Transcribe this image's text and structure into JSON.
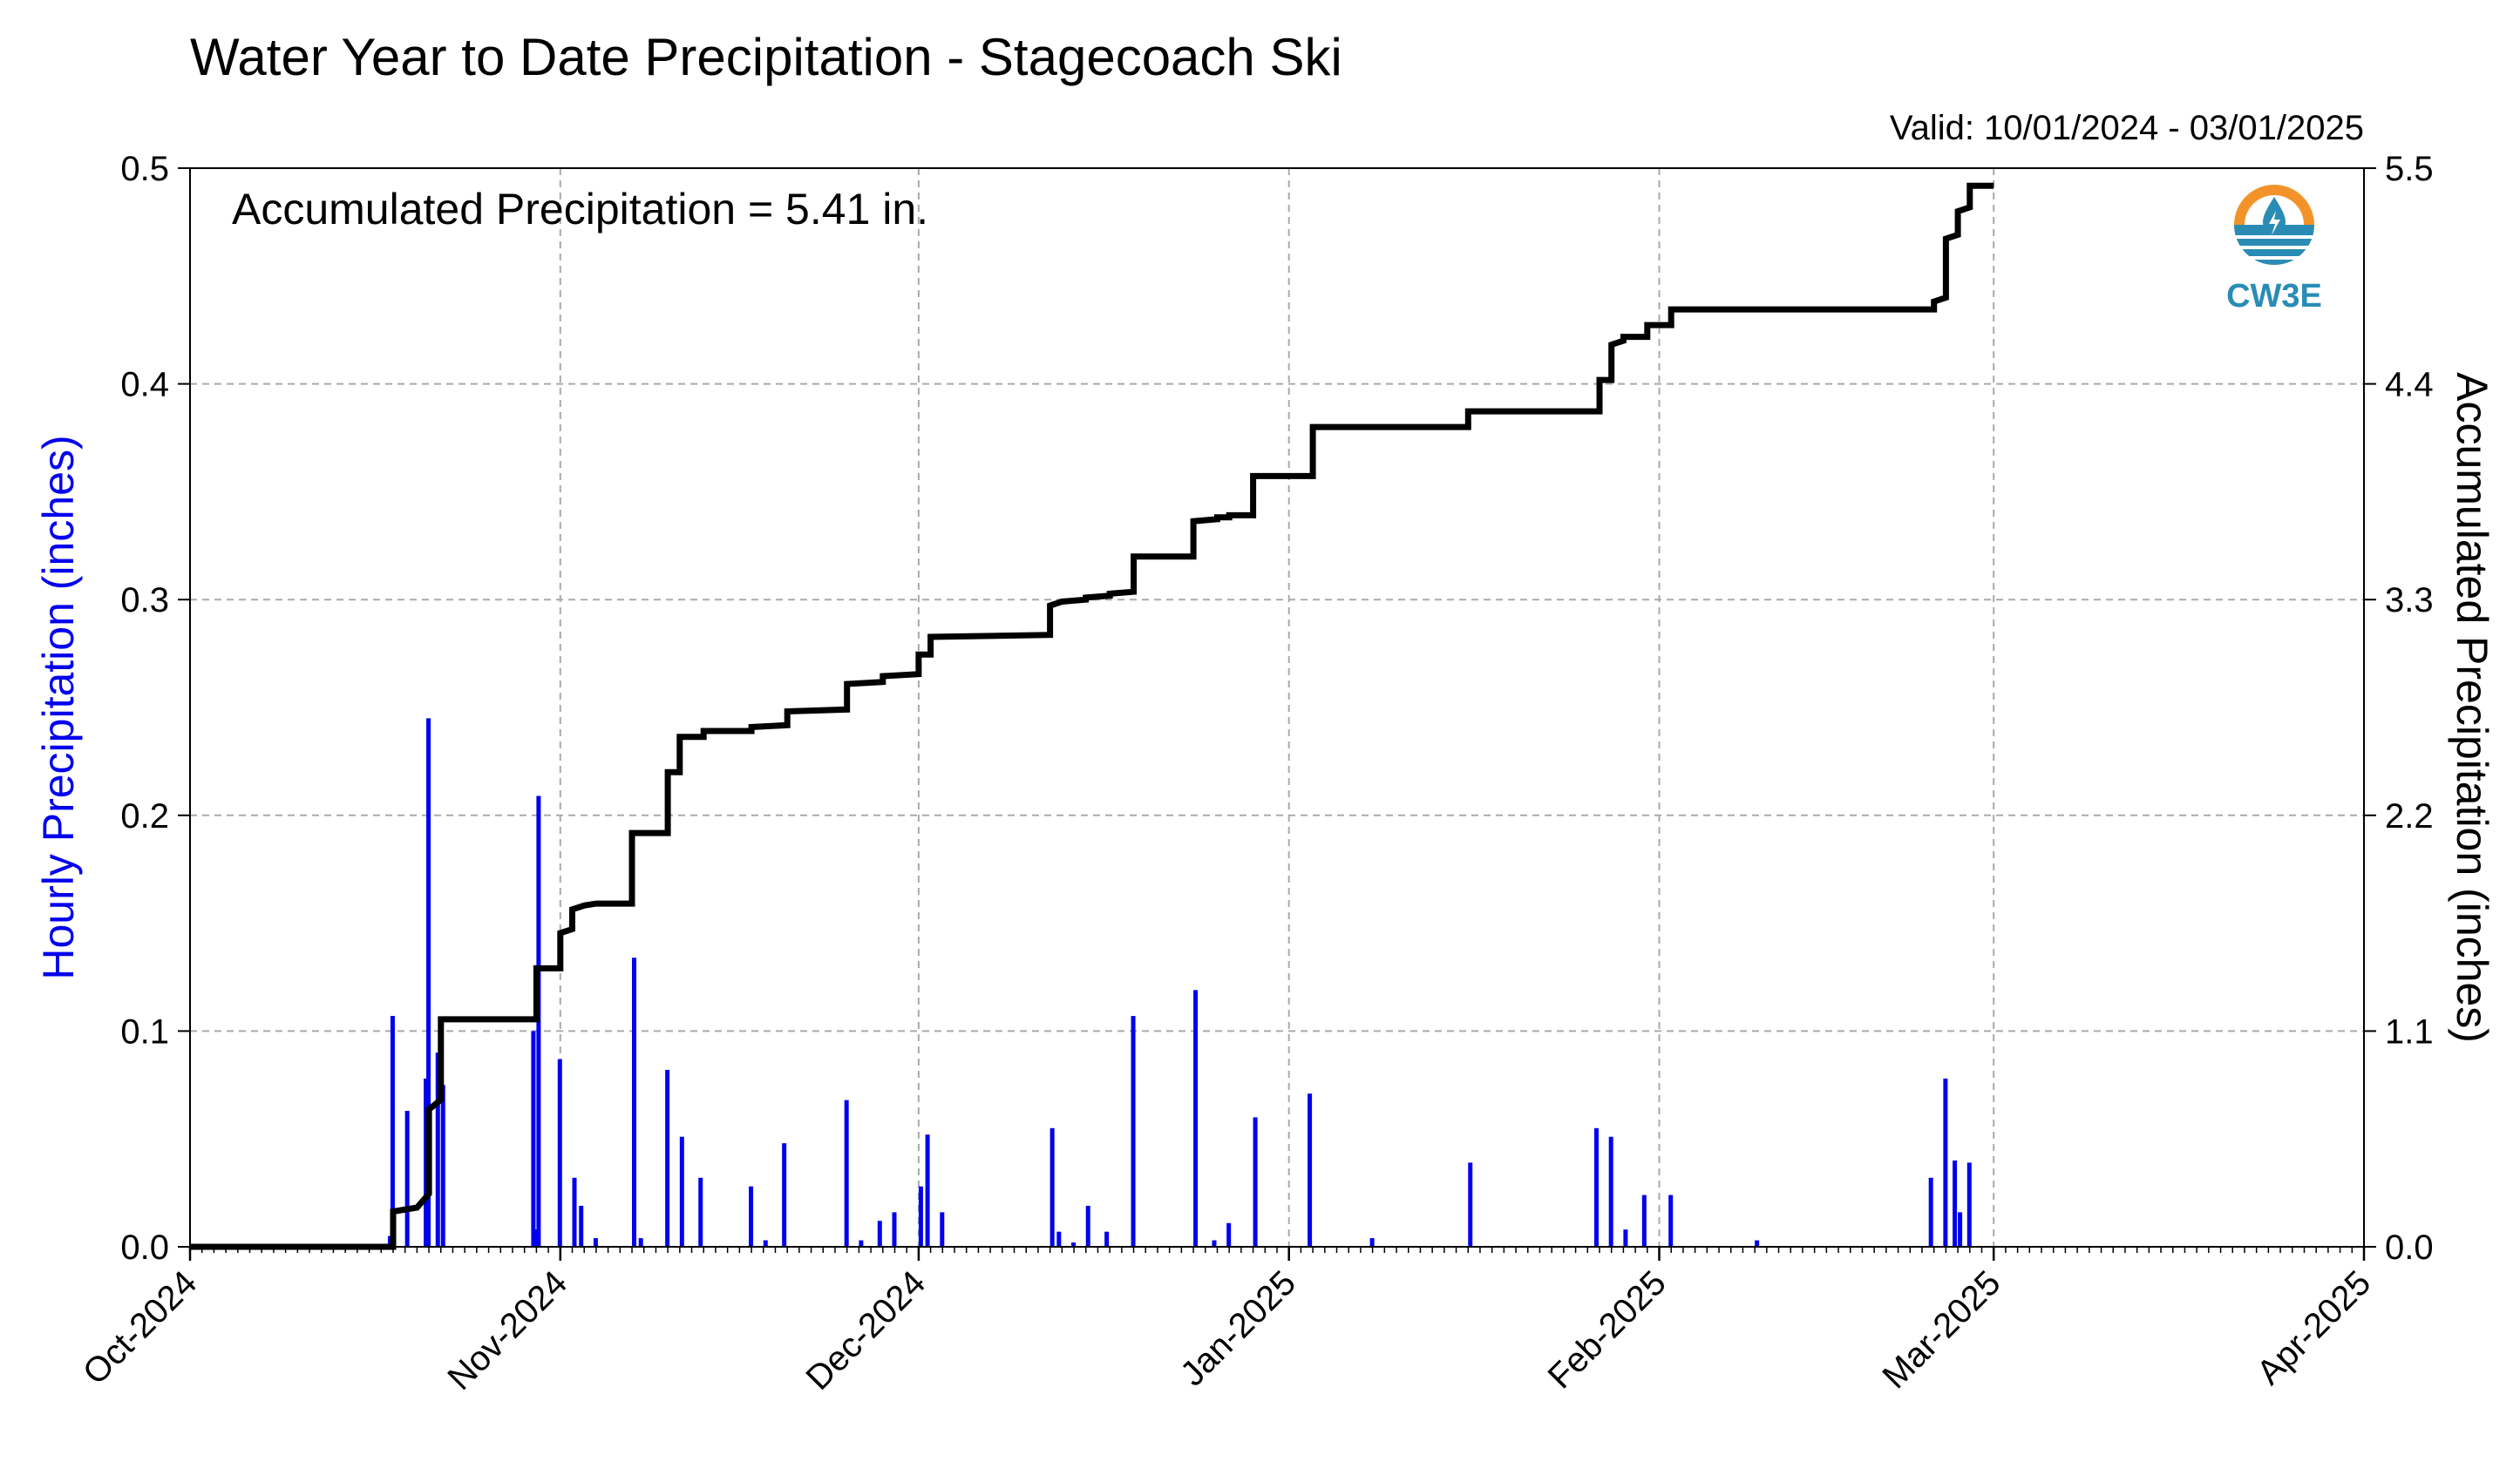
{
  "chart_data": {
    "type": "bar+line",
    "title": "Water Year to Date Precipitation - Stagecoach Ski",
    "subtitle": "Valid: 10/01/2024 - 03/01/2025",
    "annotation": "Accumulated Precipitation = 5.41 in.",
    "logo_text": "CW3E",
    "ylabel_left": "Hourly Precipitation (inches)",
    "ylabel_right": "Accumulated Precipitation (inches)",
    "ylim_left": [
      0,
      0.5
    ],
    "ylim_right": [
      0,
      5.5
    ],
    "yticks_left": [
      "0.0",
      "0.1",
      "0.2",
      "0.3",
      "0.4",
      "0.5"
    ],
    "yticks_right": [
      "0.0",
      "1.1",
      "2.2",
      "3.3",
      "4.4",
      "5.5"
    ],
    "xlim": [
      "2024-10-01",
      "2025-04-01"
    ],
    "xticks": [
      {
        "date": "2024-10-01",
        "label": "Oct-2024"
      },
      {
        "date": "2024-11-01",
        "label": "Nov-2024"
      },
      {
        "date": "2024-12-01",
        "label": "Dec-2024"
      },
      {
        "date": "2025-01-01",
        "label": "Jan-2025"
      },
      {
        "date": "2025-02-01",
        "label": "Feb-2025"
      },
      {
        "date": "2025-03-01",
        "label": "Mar-2025"
      },
      {
        "date": "2025-04-01",
        "label": "Apr-2025"
      }
    ],
    "grid": true,
    "colors": {
      "hourly": "#0000ee",
      "accumulated": "#000000",
      "grid": "#aaaaaa",
      "logo_orange": "#f4922a",
      "logo_blue": "#2a8cb5"
    },
    "series": [
      {
        "name": "Hourly Precipitation",
        "type": "bar",
        "points": [
          [
            "2024-10-18",
            0.005
          ],
          [
            "2024-10-18",
            0.107
          ],
          [
            "2024-10-19",
            0.063
          ],
          [
            "2024-10-21",
            0.078
          ],
          [
            "2024-10-21",
            0.245
          ],
          [
            "2024-10-22",
            0.075
          ],
          [
            "2024-10-22",
            0.09
          ],
          [
            "2024-10-30",
            0.008
          ],
          [
            "2024-10-30",
            0.209
          ],
          [
            "2024-10-30",
            0.1
          ],
          [
            "2024-11-01",
            0.087
          ],
          [
            "2024-11-02",
            0.032
          ],
          [
            "2024-11-03",
            0.019
          ],
          [
            "2024-11-04",
            0.004
          ],
          [
            "2024-11-07",
            0.134
          ],
          [
            "2024-11-08",
            0.004
          ],
          [
            "2024-11-10",
            0.082
          ],
          [
            "2024-11-11",
            0.051
          ],
          [
            "2024-11-13",
            0.032
          ],
          [
            "2024-11-17",
            0.028
          ],
          [
            "2024-11-18",
            0.003
          ],
          [
            "2024-11-20",
            0.048
          ],
          [
            "2024-11-25",
            0.068
          ],
          [
            "2024-11-26",
            0.003
          ],
          [
            "2024-11-28",
            0.012
          ],
          [
            "2024-11-29",
            0.016
          ],
          [
            "2024-12-01",
            0.028
          ],
          [
            "2024-12-02",
            0.052
          ],
          [
            "2024-12-03",
            0.016
          ],
          [
            "2024-12-12",
            0.055
          ],
          [
            "2024-12-13",
            0.007
          ],
          [
            "2024-12-14",
            0.002
          ],
          [
            "2024-12-15",
            0.019
          ],
          [
            "2024-12-17",
            0.007
          ],
          [
            "2024-12-19",
            0.107
          ],
          [
            "2024-12-24",
            0.119
          ],
          [
            "2024-12-26",
            0.003
          ],
          [
            "2024-12-27",
            0.011
          ],
          [
            "2024-12-29",
            0.06
          ],
          [
            "2025-01-03",
            0.071
          ],
          [
            "2025-01-08",
            0.004
          ],
          [
            "2025-01-16",
            0.039
          ],
          [
            "2025-01-27",
            0.055
          ],
          [
            "2025-01-28",
            0.051
          ],
          [
            "2025-01-29",
            0.008
          ],
          [
            "2025-01-31",
            0.024
          ],
          [
            "2025-02-02",
            0.024
          ],
          [
            "2025-02-09",
            0.003
          ],
          [
            "2025-02-24",
            0.032
          ],
          [
            "2025-02-25",
            0.078
          ],
          [
            "2025-02-26",
            0.016
          ],
          [
            "2025-02-26",
            0.04
          ],
          [
            "2025-02-27",
            0.039
          ]
        ]
      },
      {
        "name": "Accumulated Precipitation",
        "type": "line",
        "points": [
          [
            "2024-10-01",
            0.0
          ],
          [
            "2024-10-18",
            0.0
          ],
          [
            "2024-10-18",
            0.18
          ],
          [
            "2024-10-20",
            0.2
          ],
          [
            "2024-10-21",
            0.27
          ],
          [
            "2024-10-21",
            0.7
          ],
          [
            "2024-10-22",
            0.75
          ],
          [
            "2024-10-22",
            1.16
          ],
          [
            "2024-10-30",
            1.16
          ],
          [
            "2024-10-30",
            1.42
          ],
          [
            "2024-11-01",
            1.42
          ],
          [
            "2024-11-01",
            1.6
          ],
          [
            "2024-11-02",
            1.62
          ],
          [
            "2024-11-02",
            1.72
          ],
          [
            "2024-11-03",
            1.74
          ],
          [
            "2024-11-04",
            1.75
          ],
          [
            "2024-11-07",
            1.75
          ],
          [
            "2024-11-07",
            2.11
          ],
          [
            "2024-11-10",
            2.11
          ],
          [
            "2024-11-10",
            2.42
          ],
          [
            "2024-11-11",
            2.42
          ],
          [
            "2024-11-11",
            2.6
          ],
          [
            "2024-11-13",
            2.6
          ],
          [
            "2024-11-13",
            2.63
          ],
          [
            "2024-11-17",
            2.63
          ],
          [
            "2024-11-17",
            2.65
          ],
          [
            "2024-11-20",
            2.66
          ],
          [
            "2024-11-20",
            2.73
          ],
          [
            "2024-11-25",
            2.74
          ],
          [
            "2024-11-25",
            2.87
          ],
          [
            "2024-11-28",
            2.88
          ],
          [
            "2024-11-28",
            2.91
          ],
          [
            "2024-12-01",
            2.92
          ],
          [
            "2024-12-01",
            3.02
          ],
          [
            "2024-12-02",
            3.02
          ],
          [
            "2024-12-02",
            3.11
          ],
          [
            "2024-12-12",
            3.12
          ],
          [
            "2024-12-12",
            3.27
          ],
          [
            "2024-12-13",
            3.29
          ],
          [
            "2024-12-15",
            3.3
          ],
          [
            "2024-12-15",
            3.31
          ],
          [
            "2024-12-17",
            3.32
          ],
          [
            "2024-12-17",
            3.33
          ],
          [
            "2024-12-19",
            3.34
          ],
          [
            "2024-12-19",
            3.52
          ],
          [
            "2024-12-24",
            3.52
          ],
          [
            "2024-12-24",
            3.7
          ],
          [
            "2024-12-26",
            3.71
          ],
          [
            "2024-12-26",
            3.72
          ],
          [
            "2024-12-27",
            3.72
          ],
          [
            "2024-12-27",
            3.73
          ],
          [
            "2024-12-29",
            3.73
          ],
          [
            "2024-12-29",
            3.93
          ],
          [
            "2025-01-03",
            3.93
          ],
          [
            "2025-01-03",
            4.18
          ],
          [
            "2025-01-08",
            4.18
          ],
          [
            "2025-01-08",
            4.18
          ],
          [
            "2025-01-16",
            4.18
          ],
          [
            "2025-01-16",
            4.26
          ],
          [
            "2025-01-27",
            4.26
          ],
          [
            "2025-01-27",
            4.42
          ],
          [
            "2025-01-28",
            4.42
          ],
          [
            "2025-01-28",
            4.6
          ],
          [
            "2025-01-29",
            4.62
          ],
          [
            "2025-01-29",
            4.64
          ],
          [
            "2025-01-31",
            4.64
          ],
          [
            "2025-01-31",
            4.7
          ],
          [
            "2025-02-02",
            4.7
          ],
          [
            "2025-02-02",
            4.78
          ],
          [
            "2025-02-09",
            4.78
          ],
          [
            "2025-02-24",
            4.78
          ],
          [
            "2025-02-24",
            4.82
          ],
          [
            "2025-02-25",
            4.84
          ],
          [
            "2025-02-25",
            5.14
          ],
          [
            "2025-02-26",
            5.16
          ],
          [
            "2025-02-26",
            5.28
          ],
          [
            "2025-02-27",
            5.3
          ],
          [
            "2025-02-27",
            5.41
          ],
          [
            "2025-03-01",
            5.41
          ]
        ]
      }
    ]
  }
}
